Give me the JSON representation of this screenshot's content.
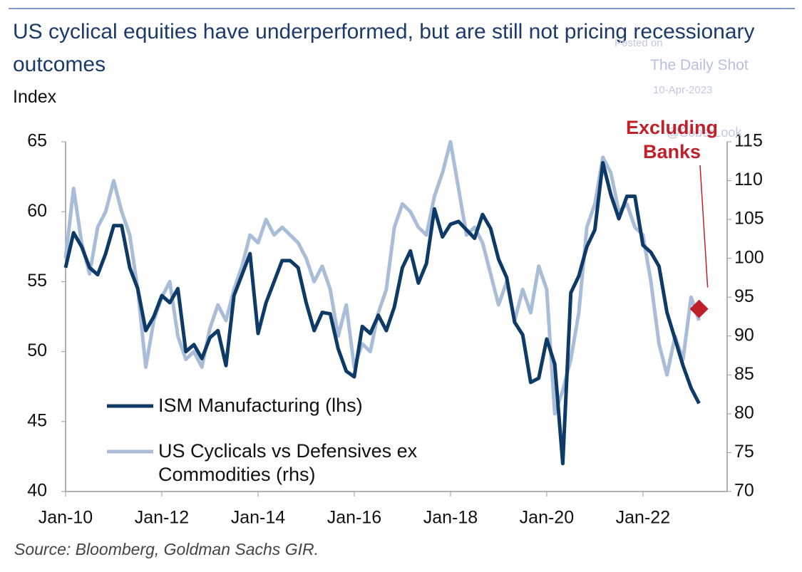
{
  "chart_data": {
    "type": "line",
    "title": "US cyclical equities have underperformed, but are still not pricing recessionary outcomes",
    "y_label": "Index",
    "source": "Source: Bloomberg, Goldman Sachs GIR.",
    "watermark": [
      "Posted on",
      "The Daily Shot",
      "10-Apr-2023",
      "@SoberLook"
    ],
    "x": [
      "2010-01",
      "2010-03",
      "2010-05",
      "2010-07",
      "2010-09",
      "2010-11",
      "2011-01",
      "2011-03",
      "2011-05",
      "2011-07",
      "2011-09",
      "2011-11",
      "2012-01",
      "2012-03",
      "2012-05",
      "2012-07",
      "2012-09",
      "2012-11",
      "2013-01",
      "2013-03",
      "2013-05",
      "2013-07",
      "2013-09",
      "2013-11",
      "2014-01",
      "2014-03",
      "2014-05",
      "2014-07",
      "2014-09",
      "2014-11",
      "2015-01",
      "2015-03",
      "2015-05",
      "2015-07",
      "2015-09",
      "2015-11",
      "2016-01",
      "2016-03",
      "2016-05",
      "2016-07",
      "2016-09",
      "2016-11",
      "2017-01",
      "2017-03",
      "2017-05",
      "2017-07",
      "2017-09",
      "2017-11",
      "2018-01",
      "2018-03",
      "2018-05",
      "2018-07",
      "2018-09",
      "2018-11",
      "2019-01",
      "2019-03",
      "2019-05",
      "2019-07",
      "2019-09",
      "2019-11",
      "2020-01",
      "2020-03",
      "2020-05",
      "2020-07",
      "2020-09",
      "2020-11",
      "2021-01",
      "2021-03",
      "2021-05",
      "2021-07",
      "2021-09",
      "2021-11",
      "2022-01",
      "2022-03",
      "2022-05",
      "2022-07",
      "2022-09",
      "2022-11",
      "2023-01",
      "2023-03"
    ],
    "xlim": [
      "2010-01",
      "2023-10"
    ],
    "xticks": [
      {
        "value": "2010-01",
        "label": "Jan-10"
      },
      {
        "value": "2012-01",
        "label": "Jan-12"
      },
      {
        "value": "2014-01",
        "label": "Jan-14"
      },
      {
        "value": "2016-01",
        "label": "Jan-16"
      },
      {
        "value": "2018-01",
        "label": "Jan-18"
      },
      {
        "value": "2020-01",
        "label": "Jan-20"
      },
      {
        "value": "2022-01",
        "label": "Jan-22"
      }
    ],
    "ylim": [
      40,
      65
    ],
    "yticks": [
      40,
      45,
      50,
      55,
      60,
      65
    ],
    "y2lim": [
      70,
      115
    ],
    "y2ticks": [
      70,
      75,
      80,
      85,
      90,
      95,
      100,
      105,
      110,
      115
    ],
    "series": [
      {
        "name": "ISM Manufacturing (lhs)",
        "color": "#0d3a66",
        "axis": "y",
        "values": [
          56,
          58.5,
          57.5,
          56,
          55.5,
          57,
          59,
          59,
          56,
          54.5,
          51.5,
          52.5,
          54,
          53.5,
          54.5,
          50,
          50.5,
          49.5,
          51,
          51.5,
          49,
          54,
          55.5,
          57,
          51.3,
          53.5,
          55,
          56.5,
          56.5,
          56,
          53.5,
          51.5,
          52.8,
          52.7,
          50.2,
          48.6,
          48.2,
          51.8,
          51.3,
          52.6,
          51.5,
          53.2,
          56,
          57.2,
          54.9,
          56.3,
          60.2,
          58.2,
          59.1,
          59.3,
          58.7,
          58.1,
          59.8,
          58.8,
          56.6,
          55.3,
          52.1,
          51.2,
          47.8,
          48.1,
          50.9,
          49.1,
          42,
          54.2,
          55.4,
          57.5,
          58.7,
          63.5,
          61.2,
          59.5,
          61.1,
          61.1,
          57.6,
          57.1,
          56.1,
          52.8,
          50.9,
          49,
          47.4,
          46.3
        ]
      },
      {
        "name": "US Cyclicals vs Defensives ex Commodities (rhs)",
        "color": "#a9bcd8",
        "axis": "y2",
        "values": [
          100,
          109,
          102,
          98,
          104,
          106,
          110,
          106,
          103,
          96,
          86,
          92,
          95,
          97,
          90,
          87,
          88,
          86,
          91,
          94,
          92,
          96,
          99,
          103,
          102,
          105,
          103,
          104,
          103,
          102,
          100,
          97,
          99,
          96,
          90,
          94,
          86,
          89,
          88,
          93,
          96,
          104,
          107,
          106,
          104,
          103,
          108,
          111,
          115,
          109,
          103,
          104,
          102,
          98,
          94,
          97,
          92,
          96,
          93,
          99,
          96,
          80,
          83,
          87,
          93,
          104,
          107,
          113,
          111,
          106,
          107,
          104,
          103,
          97,
          89,
          85,
          90,
          87,
          95,
          92
        ]
      }
    ],
    "annotation": {
      "text": "Excluding Banks",
      "x": "2023-03",
      "value": 93.5,
      "axis": "y2",
      "color": "#c0202a"
    },
    "legend": "lower left"
  }
}
